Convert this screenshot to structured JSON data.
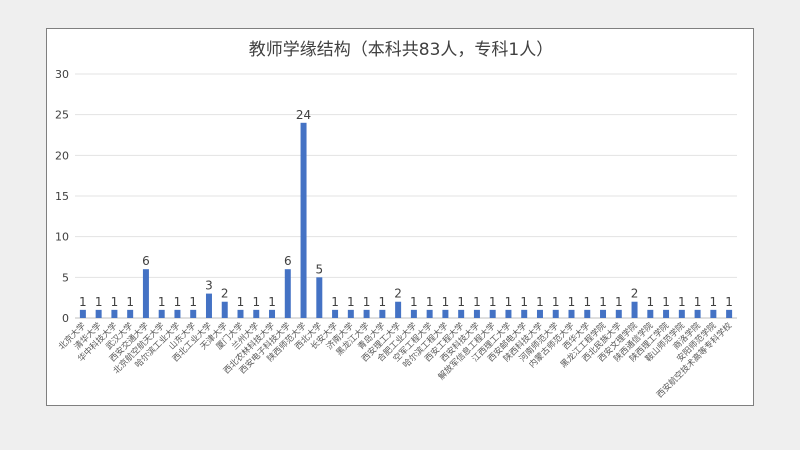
{
  "chart_data": {
    "type": "bar",
    "title": "教师学缘结构（本科共83人，专科1人）",
    "xlabel": "",
    "ylabel": "",
    "ylim": [
      0,
      30
    ],
    "yticks": [
      0,
      5,
      10,
      15,
      20,
      25,
      30
    ],
    "grid": true,
    "legend": "none",
    "bar_color": "#4472c4",
    "categories": [
      "北京大学",
      "清华大学",
      "华中科技大学",
      "武汉大学",
      "西安交通大学",
      "北京航空航天大学",
      "哈尔滨工业大学",
      "山东大学",
      "西北工业大学",
      "天津大学",
      "厦门大学",
      "兰州大学",
      "西北农林科技大学",
      "西安电子科技大学",
      "陕西师范大学",
      "西北大学",
      "长安大学",
      "济南大学",
      "黑龙江大学",
      "青岛大学",
      "西安理工大学",
      "合肥工业大学",
      "空军工程大学",
      "哈尔滨工程大学",
      "西安工程大学",
      "西安科技大学",
      "解放军信息工程大学",
      "江西理工大学",
      "西安邮电大学",
      "陕西科技大学",
      "河南师范大学",
      "内蒙古师范大学",
      "西华大学",
      "黑龙江工程学院",
      "西北民族大学",
      "西安文理学院",
      "陕西通信学院",
      "陕西理工学院",
      "鞍山师范学院",
      "商洛学院",
      "安阳师范学院",
      "西安航空技术高等专科学校"
    ],
    "values": [
      1,
      1,
      1,
      1,
      6,
      1,
      1,
      1,
      3,
      2,
      1,
      1,
      1,
      6,
      24,
      5,
      1,
      1,
      1,
      1,
      2,
      1,
      1,
      1,
      1,
      1,
      1,
      1,
      1,
      1,
      1,
      1,
      1,
      1,
      1,
      2,
      1,
      1,
      1,
      1,
      1,
      1
    ]
  }
}
